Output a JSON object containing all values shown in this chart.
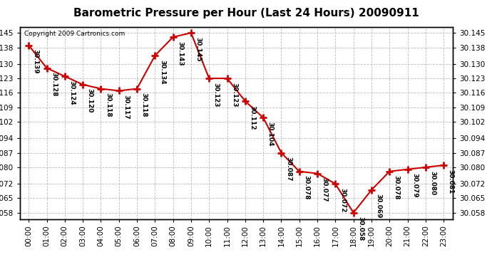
{
  "title": "Barometric Pressure per Hour (Last 24 Hours) 20090911",
  "copyright": "Copyright 2009 Cartronics.com",
  "hours": [
    0,
    1,
    2,
    3,
    4,
    5,
    6,
    7,
    8,
    9,
    10,
    11,
    12,
    13,
    14,
    15,
    16,
    17,
    18,
    19,
    20,
    21,
    22,
    23
  ],
  "values": [
    30.139,
    30.128,
    30.124,
    30.12,
    30.118,
    30.117,
    30.118,
    30.134,
    30.143,
    30.145,
    30.123,
    30.123,
    30.112,
    30.104,
    30.087,
    30.078,
    30.077,
    30.072,
    30.058,
    30.069,
    30.078,
    30.079,
    30.08,
    30.081
  ],
  "labels": [
    "30.139",
    "30.128",
    "30.124",
    "30.120",
    "30.118",
    "30.117",
    "30.118",
    "30.134",
    "30.143",
    "30.145",
    "30.123",
    "30.123",
    "30.112",
    "30.104",
    "30.087",
    "30.078",
    "30.077",
    "30.072",
    "30.058",
    "30.069",
    "30.078",
    "30.079",
    "30.080",
    "30.081"
  ],
  "yticks": [
    30.058,
    30.065,
    30.072,
    30.08,
    30.087,
    30.094,
    30.102,
    30.109,
    30.116,
    30.123,
    30.13,
    30.138,
    30.145
  ],
  "ylim_min": 30.055,
  "ylim_max": 30.148,
  "line_color": "#cc0000",
  "marker_color": "#cc0000",
  "bg_color": "#ffffff",
  "grid_color": "#bbbbbb",
  "title_fontsize": 11,
  "tick_fontsize": 7.5,
  "label_fontsize": 6.5
}
